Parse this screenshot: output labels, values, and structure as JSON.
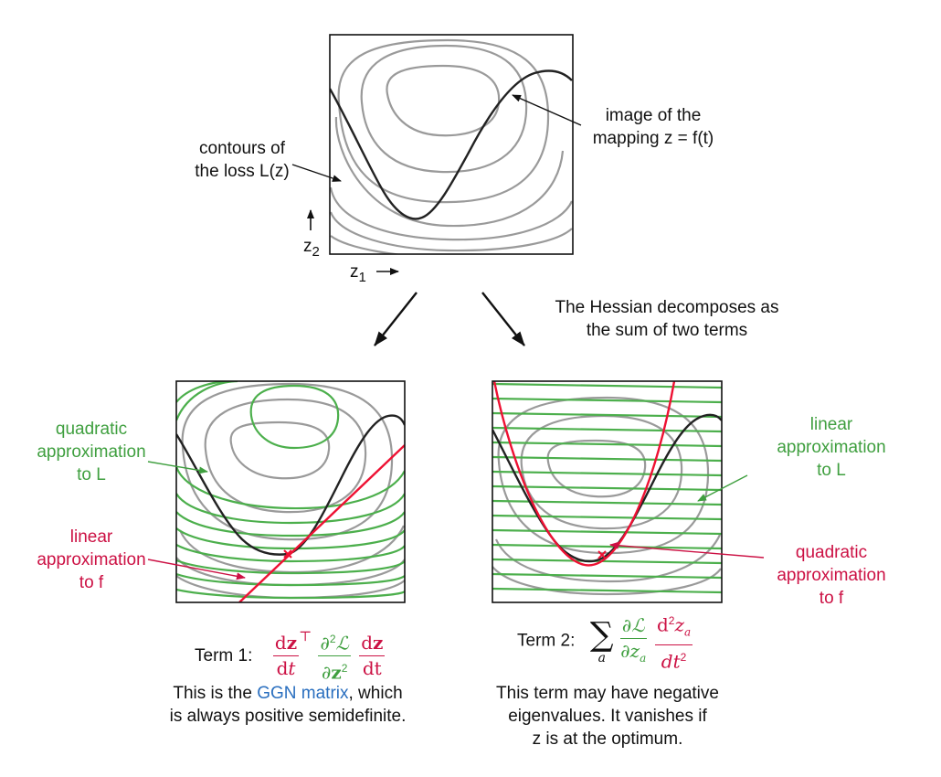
{
  "top_panel": {
    "contours_label": [
      "contours of",
      "the loss L(z)"
    ],
    "image_label": [
      "image of the",
      "mapping z = f(t)"
    ],
    "z2_axis": {
      "letter": "z",
      "sub": "2"
    },
    "z1_axis": {
      "letter": "z",
      "sub": "1"
    }
  },
  "hessian_note": [
    "The Hessian decomposes as",
    "the sum of two terms"
  ],
  "left_panel": {
    "quadratic_label": [
      "quadratic",
      "approximation",
      "to L"
    ],
    "linear_label": [
      "linear",
      "approximation",
      "to f"
    ],
    "term_label": "Term 1:",
    "description": [
      "This is the ",
      "GGN matrix",
      ", which",
      "is always positive semidefinite."
    ]
  },
  "right_panel": {
    "linear_label": [
      "linear",
      "approximation",
      "to L"
    ],
    "quadratic_label": [
      "quadratic",
      "approximation",
      "to f"
    ],
    "term_label": "Term 2:",
    "description": [
      "This term may have negative",
      "eigenvalues. It vanishes if",
      "z is at the optimum."
    ]
  },
  "colors": {
    "contour": "#9a9a9a",
    "curve": "#222222",
    "green": "#3f9f3f",
    "red": "#cc1144",
    "blue": "#2a6fbf"
  }
}
